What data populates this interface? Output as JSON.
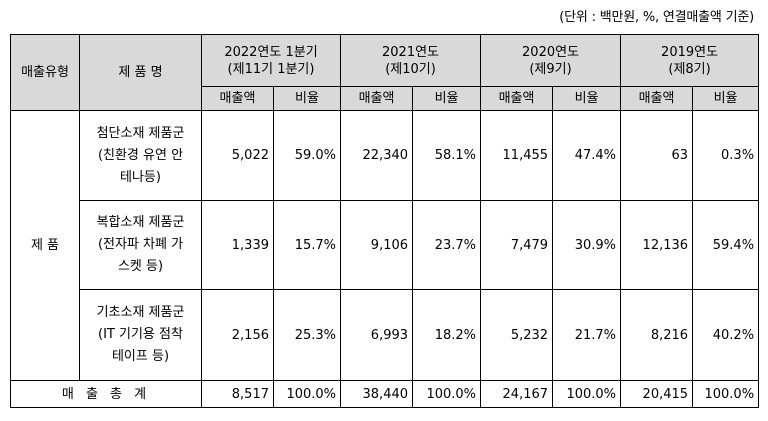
{
  "unit_note": "(단위 : 백만원, %, 연결매출액 기준)",
  "header": {
    "type_col": "매출유형",
    "product_col": "제 품 명",
    "periods": [
      {
        "line1": "2022연도 1분기",
        "line2": "(제11기 1분기)"
      },
      {
        "line1": "2021연도",
        "line2": "(제10기)"
      },
      {
        "line1": "2020연도",
        "line2": "(제9기)"
      },
      {
        "line1": "2019연도",
        "line2": "(제8기)"
      }
    ],
    "sales_label": "매출액",
    "ratio_label": "비율"
  },
  "category": "제 품",
  "rows": [
    {
      "name": [
        "첨단소재 제품군",
        "(친환경 유연 안",
        "테나등)"
      ],
      "values": [
        "5,022",
        "59.0%",
        "22,340",
        "58.1%",
        "11,455",
        "47.4%",
        "63",
        "0.3%"
      ]
    },
    {
      "name": [
        "복합소재 제품군",
        "(전자파 차폐 가",
        "스켓 등)"
      ],
      "values": [
        "1,339",
        "15.7%",
        "9,106",
        "23.7%",
        "7,479",
        "30.9%",
        "12,136",
        "59.4%"
      ]
    },
    {
      "name": [
        "기초소재 제품군",
        "(IT 기기용 점착",
        "테이프 등)"
      ],
      "values": [
        "2,156",
        "25.3%",
        "6,993",
        "18.2%",
        "5,232",
        "21.7%",
        "8,216",
        "40.2%"
      ]
    }
  ],
  "total": {
    "label": "매 출 총 계",
    "values": [
      "8,517",
      "100.0%",
      "38,440",
      "100.0%",
      "24,167",
      "100.0%",
      "20,415",
      "100.0%"
    ]
  }
}
